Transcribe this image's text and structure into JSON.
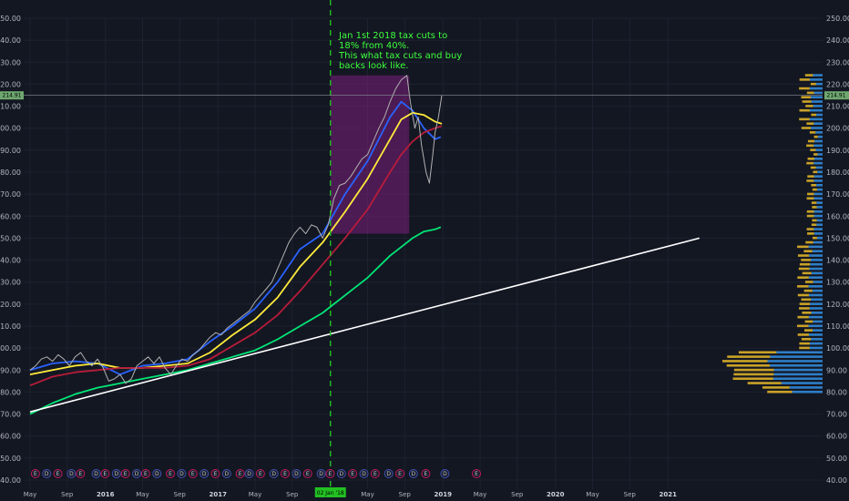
{
  "chart_data": {
    "type": "line",
    "ylim": [
      40,
      250
    ],
    "y_ticks": [
      "40.00",
      "50.00",
      "60.00",
      "70.00",
      "80.00",
      "90.00",
      "100.00",
      "110.00",
      "120.00",
      "130.00",
      "140.00",
      "150.00",
      "160.00",
      "170.00",
      "180.00",
      "190.00",
      "200.00",
      "210.00",
      "220.00",
      "230.00",
      "240.00",
      "250.00"
    ],
    "x_ticks": [
      {
        "label": "May",
        "t": 0.0,
        "bold": false
      },
      {
        "label": "Sep",
        "t": 0.33,
        "bold": false
      },
      {
        "label": "2016",
        "t": 0.67,
        "bold": true
      },
      {
        "label": "May",
        "t": 1.0,
        "bold": false
      },
      {
        "label": "Sep",
        "t": 1.33,
        "bold": false
      },
      {
        "label": "2017",
        "t": 1.67,
        "bold": true
      },
      {
        "label": "May",
        "t": 2.0,
        "bold": false
      },
      {
        "label": "Sep",
        "t": 2.33,
        "bold": false
      },
      {
        "label": "May",
        "t": 3.0,
        "bold": false
      },
      {
        "label": "Sep",
        "t": 3.33,
        "bold": false
      },
      {
        "label": "2019",
        "t": 3.67,
        "bold": true
      },
      {
        "label": "May",
        "t": 4.0,
        "bold": false
      },
      {
        "label": "Sep",
        "t": 4.33,
        "bold": false
      },
      {
        "label": "2020",
        "t": 4.67,
        "bold": true
      },
      {
        "label": "May",
        "t": 5.0,
        "bold": false
      },
      {
        "label": "Sep",
        "t": 5.33,
        "bold": false
      },
      {
        "label": "2021",
        "t": 5.67,
        "bold": true
      }
    ],
    "current_price": "214.91",
    "vertical_marker_date": "02 Jan '18",
    "annotation": [
      "Jan 1st 2018 tax cuts to",
      "18% from 40%.",
      "This what tax cuts and buy",
      "backs look like."
    ],
    "highlight_box": {
      "t_start": 2.67,
      "t_end": 3.37,
      "y_low": 152,
      "y_high": 224,
      "color": "#7b1f7b"
    },
    "price_series": {
      "name": "",
      "color": "#b0b0b0",
      "points": [
        [
          0.0,
          90
        ],
        [
          0.05,
          92
        ],
        [
          0.1,
          95
        ],
        [
          0.15,
          96
        ],
        [
          0.2,
          94
        ],
        [
          0.25,
          97
        ],
        [
          0.3,
          95
        ],
        [
          0.35,
          92
        ],
        [
          0.4,
          96
        ],
        [
          0.45,
          98
        ],
        [
          0.5,
          94
        ],
        [
          0.55,
          92
        ],
        [
          0.6,
          95
        ],
        [
          0.65,
          91
        ],
        [
          0.7,
          85
        ],
        [
          0.75,
          86
        ],
        [
          0.8,
          88
        ],
        [
          0.85,
          84
        ],
        [
          0.9,
          86
        ],
        [
          0.95,
          92
        ],
        [
          1.0,
          94
        ],
        [
          1.05,
          96
        ],
        [
          1.1,
          93
        ],
        [
          1.15,
          96
        ],
        [
          1.2,
          91
        ],
        [
          1.25,
          88
        ],
        [
          1.3,
          92
        ],
        [
          1.35,
          95
        ],
        [
          1.4,
          94
        ],
        [
          1.45,
          97
        ],
        [
          1.5,
          99
        ],
        [
          1.55,
          102
        ],
        [
          1.6,
          105
        ],
        [
          1.65,
          107
        ],
        [
          1.7,
          106
        ],
        [
          1.75,
          109
        ],
        [
          1.8,
          111
        ],
        [
          1.85,
          113
        ],
        [
          1.9,
          115
        ],
        [
          1.95,
          117
        ],
        [
          2.0,
          121
        ],
        [
          2.05,
          124
        ],
        [
          2.1,
          127
        ],
        [
          2.15,
          130
        ],
        [
          2.2,
          136
        ],
        [
          2.25,
          142
        ],
        [
          2.3,
          148
        ],
        [
          2.35,
          152
        ],
        [
          2.4,
          155
        ],
        [
          2.45,
          152
        ],
        [
          2.5,
          156
        ],
        [
          2.55,
          155
        ],
        [
          2.6,
          150
        ],
        [
          2.65,
          156
        ],
        [
          2.7,
          168
        ],
        [
          2.75,
          174
        ],
        [
          2.8,
          175
        ],
        [
          2.85,
          178
        ],
        [
          2.9,
          182
        ],
        [
          2.95,
          186
        ],
        [
          3.0,
          188
        ],
        [
          3.05,
          194
        ],
        [
          3.1,
          200
        ],
        [
          3.15,
          205
        ],
        [
          3.2,
          212
        ],
        [
          3.25,
          218
        ],
        [
          3.3,
          222
        ],
        [
          3.35,
          224
        ],
        [
          3.38,
          212
        ],
        [
          3.42,
          200
        ],
        [
          3.45,
          205
        ],
        [
          3.48,
          192
        ],
        [
          3.52,
          180
        ],
        [
          3.55,
          175
        ],
        [
          3.58,
          188
        ],
        [
          3.6,
          198
        ],
        [
          3.63,
          205
        ],
        [
          3.66,
          215
        ]
      ]
    },
    "series": [
      {
        "name": "",
        "color": "#2962ff",
        "points": [
          [
            0.0,
            90
          ],
          [
            0.2,
            93
          ],
          [
            0.4,
            94
          ],
          [
            0.6,
            93
          ],
          [
            0.8,
            88
          ],
          [
            1.0,
            92
          ],
          [
            1.2,
            93
          ],
          [
            1.4,
            95
          ],
          [
            1.6,
            103
          ],
          [
            1.8,
            110
          ],
          [
            2.0,
            118
          ],
          [
            2.2,
            130
          ],
          [
            2.4,
            145
          ],
          [
            2.6,
            152
          ],
          [
            2.8,
            170
          ],
          [
            3.0,
            185
          ],
          [
            3.2,
            205
          ],
          [
            3.3,
            212
          ],
          [
            3.4,
            208
          ],
          [
            3.5,
            200
          ],
          [
            3.6,
            195
          ],
          [
            3.65,
            196
          ]
        ]
      },
      {
        "name": "",
        "color": "#ffeb3b",
        "points": [
          [
            0.0,
            88
          ],
          [
            0.2,
            90
          ],
          [
            0.4,
            92
          ],
          [
            0.6,
            93
          ],
          [
            0.8,
            91
          ],
          [
            1.0,
            91
          ],
          [
            1.2,
            92
          ],
          [
            1.4,
            93
          ],
          [
            1.6,
            98
          ],
          [
            1.8,
            106
          ],
          [
            2.0,
            113
          ],
          [
            2.2,
            123
          ],
          [
            2.4,
            137
          ],
          [
            2.6,
            148
          ],
          [
            2.8,
            162
          ],
          [
            3.0,
            177
          ],
          [
            3.2,
            195
          ],
          [
            3.3,
            204
          ],
          [
            3.4,
            207
          ],
          [
            3.5,
            206
          ],
          [
            3.6,
            203
          ],
          [
            3.66,
            202
          ]
        ]
      },
      {
        "name": "",
        "color": "#b71c3a",
        "points": [
          [
            0.0,
            83
          ],
          [
            0.2,
            87
          ],
          [
            0.4,
            89
          ],
          [
            0.6,
            90
          ],
          [
            0.8,
            91
          ],
          [
            1.0,
            91
          ],
          [
            1.2,
            91
          ],
          [
            1.4,
            92
          ],
          [
            1.6,
            95
          ],
          [
            1.8,
            101
          ],
          [
            2.0,
            107
          ],
          [
            2.2,
            115
          ],
          [
            2.4,
            126
          ],
          [
            2.6,
            138
          ],
          [
            2.8,
            150
          ],
          [
            3.0,
            163
          ],
          [
            3.2,
            180
          ],
          [
            3.3,
            188
          ],
          [
            3.4,
            194
          ],
          [
            3.5,
            198
          ],
          [
            3.6,
            200
          ],
          [
            3.66,
            201
          ]
        ]
      },
      {
        "name": "",
        "color": "#00e676",
        "points": [
          [
            0.0,
            70
          ],
          [
            0.2,
            75
          ],
          [
            0.4,
            79
          ],
          [
            0.6,
            82
          ],
          [
            0.8,
            84
          ],
          [
            1.0,
            86
          ],
          [
            1.2,
            88
          ],
          [
            1.4,
            90
          ],
          [
            1.6,
            93
          ],
          [
            1.8,
            96
          ],
          [
            2.0,
            99
          ],
          [
            2.2,
            104
          ],
          [
            2.4,
            110
          ],
          [
            2.6,
            116
          ],
          [
            2.8,
            124
          ],
          [
            3.0,
            132
          ],
          [
            3.2,
            142
          ],
          [
            3.4,
            150
          ],
          [
            3.5,
            153
          ],
          [
            3.6,
            154
          ],
          [
            3.65,
            155
          ]
        ]
      },
      {
        "name": "",
        "color": "#ffffff",
        "points": [
          [
            0.0,
            71
          ],
          [
            5.95,
            150
          ]
        ]
      }
    ],
    "volume_profile_color_up": "#2e7ec8",
    "volume_profile_color_down": "#c9a227",
    "event_badges": [
      0.08,
      0.18,
      0.28,
      0.4,
      0.48,
      0.62,
      0.7,
      0.8,
      0.88,
      0.98,
      1.06,
      1.16,
      1.28,
      1.38,
      1.48,
      1.58,
      1.68,
      1.78,
      1.9,
      1.98,
      2.08,
      2.2,
      2.3,
      2.4,
      2.5,
      2.62,
      2.7,
      2.8,
      2.9,
      3.0,
      3.1,
      3.22,
      3.32,
      3.44,
      3.55,
      3.72,
      4.0
    ],
    "event_badge_letters": [
      "E",
      "D"
    ]
  }
}
